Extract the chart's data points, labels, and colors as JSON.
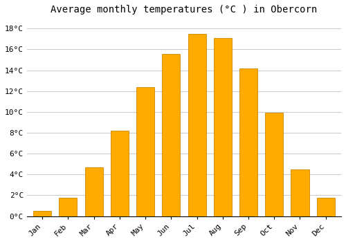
{
  "title": "Average monthly temperatures (°C ) in Obercorn",
  "months": [
    "Jan",
    "Feb",
    "Mar",
    "Apr",
    "May",
    "Jun",
    "Jul",
    "Aug",
    "Sep",
    "Oct",
    "Nov",
    "Dec"
  ],
  "values": [
    0.5,
    1.8,
    4.7,
    8.2,
    12.4,
    15.6,
    17.5,
    17.1,
    14.2,
    9.9,
    4.5,
    1.8
  ],
  "bar_color": "#FFAA00",
  "bar_edge_color": "#CC8800",
  "background_color": "#FFFFFF",
  "grid_color": "#CCCCCC",
  "ylim": [
    0,
    19
  ],
  "yticks": [
    0,
    2,
    4,
    6,
    8,
    10,
    12,
    14,
    16,
    18
  ],
  "ytick_labels": [
    "0°C",
    "2°C",
    "4°C",
    "6°C",
    "8°C",
    "10°C",
    "12°C",
    "14°C",
    "16°C",
    "18°C"
  ],
  "title_fontsize": 10,
  "tick_fontsize": 8,
  "font_family": "monospace",
  "bar_width": 0.7
}
